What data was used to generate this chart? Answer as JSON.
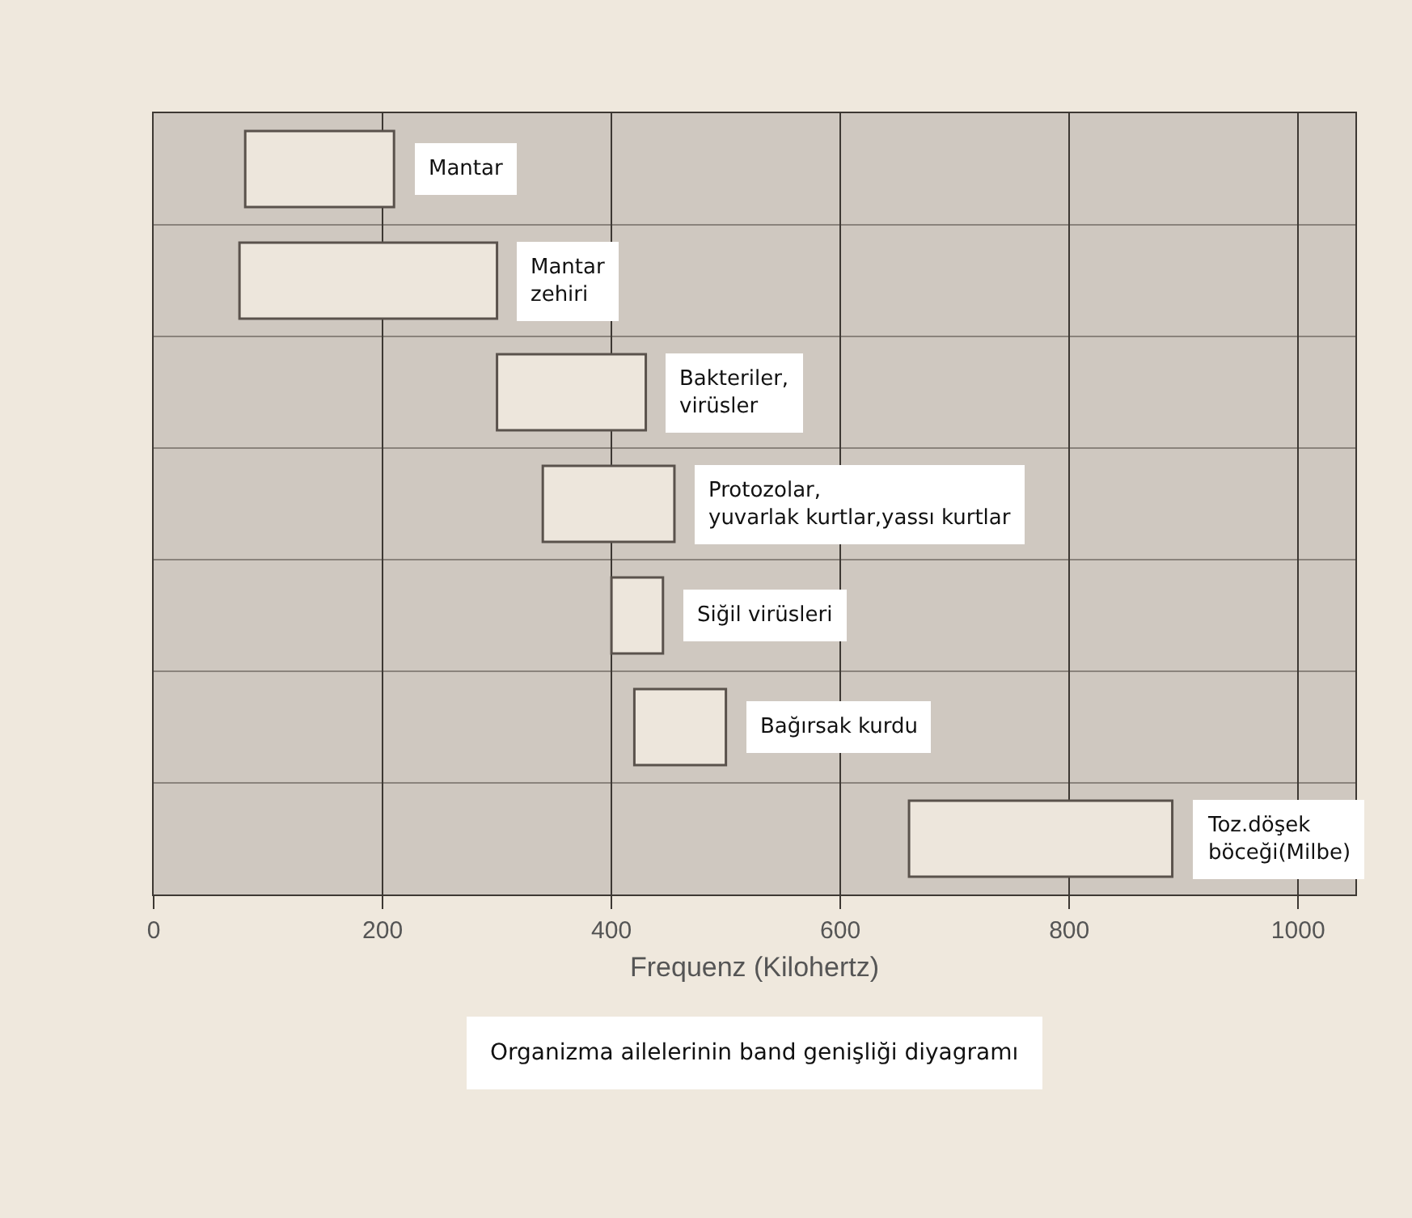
{
  "chart_data": {
    "type": "bar",
    "orientation": "horizontal",
    "title": "Organizma ailelerinin band genişliği diyagramı",
    "xlabel": "Frequenz (Kilohertz)",
    "categories": [
      "Mantar",
      "Mantar\nzehiri",
      "Bakteriler,\nvirüsler",
      "Protozolar,\nyuvarlak kurtlar,yassı kurtlar",
      "Siğil virüsleri",
      "Bağırsak kurdu",
      "Toz.döşek\nböceği(Milbe)"
    ],
    "base": [
      80,
      75,
      300,
      340,
      400,
      420,
      660
    ],
    "values": [
      130,
      225,
      130,
      115,
      45,
      80,
      230
    ],
    "color": "#ede6dc",
    "xlim": [
      0,
      1050
    ],
    "xticks": [
      0,
      200,
      400,
      600,
      800,
      1000
    ],
    "grid": true,
    "tick_labels": "x"
  }
}
